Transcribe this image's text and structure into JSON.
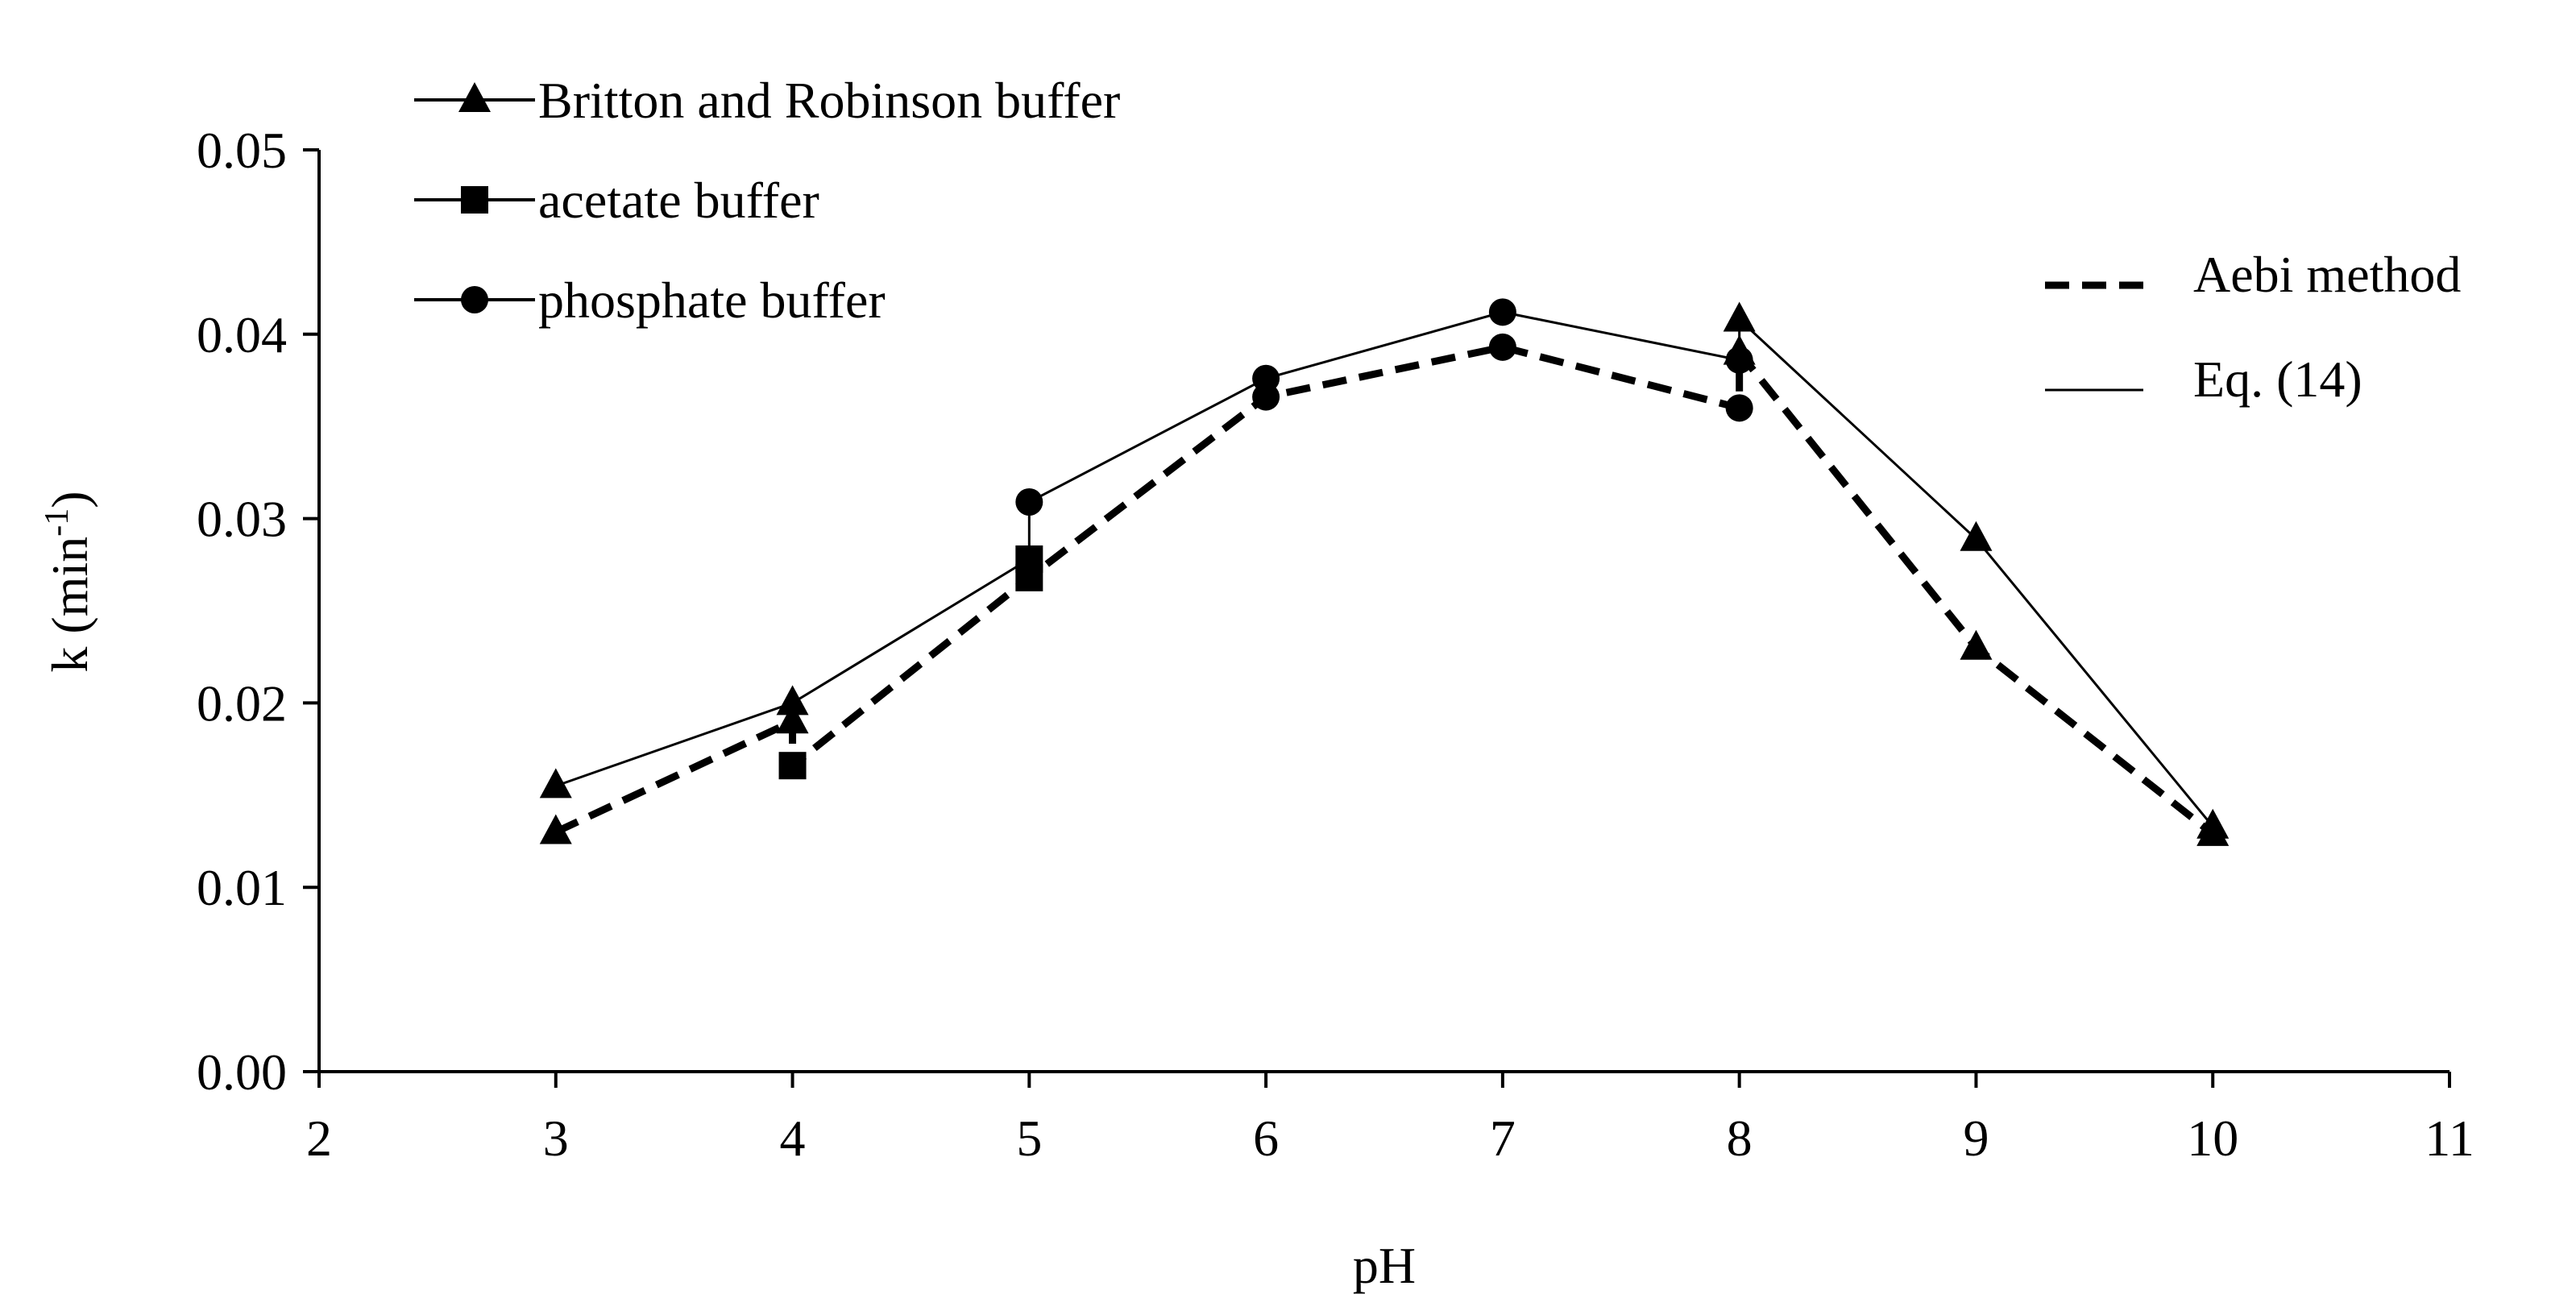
{
  "chart_data": {
    "type": "line",
    "xlabel": "pH",
    "ylabel": "k (min",
    "ylabel_sup": "-1",
    "ylabel_close": ")",
    "xlim": [
      2,
      11
    ],
    "ylim": [
      0.0,
      0.05
    ],
    "xticks": [
      "2",
      "3",
      "4",
      "5",
      "6",
      "7",
      "8",
      "9",
      "10",
      "11"
    ],
    "yticks": [
      "0.00",
      "0.01",
      "0.02",
      "0.03",
      "0.04",
      "0.05"
    ],
    "grid": false,
    "marker_legend": {
      "placement": "top-left",
      "entries": [
        {
          "label": "Britton and Robinson buffer",
          "marker": "triangle"
        },
        {
          "label": "acetate buffer",
          "marker": "square"
        },
        {
          "label": "phosphate buffer",
          "marker": "circle"
        }
      ]
    },
    "line_legend": {
      "placement": "top-right",
      "entries": [
        {
          "label": "Aebi method",
          "style": "dashed"
        },
        {
          "label": "Eq. (14)",
          "style": "solid"
        }
      ]
    },
    "series": [
      {
        "name": "Aebi method",
        "style": "dashed",
        "points": [
          {
            "x": 3,
            "y": 0.013,
            "marker": "triangle"
          },
          {
            "x": 4,
            "y": 0.019,
            "marker": "triangle"
          },
          {
            "x": 4,
            "y": 0.0166,
            "marker": "square"
          },
          {
            "x": 5,
            "y": 0.0268,
            "marker": "square"
          },
          {
            "x": 6,
            "y": 0.0366,
            "marker": "circle"
          },
          {
            "x": 7,
            "y": 0.0393,
            "marker": "circle"
          },
          {
            "x": 8,
            "y": 0.036,
            "marker": "circle"
          },
          {
            "x": 8,
            "y": 0.039,
            "marker": "triangle"
          },
          {
            "x": 9,
            "y": 0.023,
            "marker": "triangle"
          },
          {
            "x": 10,
            "y": 0.0129,
            "marker": "triangle"
          }
        ]
      },
      {
        "name": "Eq. (14)",
        "style": "solid",
        "points": [
          {
            "x": 3,
            "y": 0.0155,
            "marker": "triangle"
          },
          {
            "x": 4,
            "y": 0.02,
            "marker": "triangle"
          },
          {
            "x": 5,
            "y": 0.0278,
            "marker": "square"
          },
          {
            "x": 5,
            "y": 0.0309,
            "marker": "circle"
          },
          {
            "x": 6,
            "y": 0.0376,
            "marker": "circle"
          },
          {
            "x": 7,
            "y": 0.0412,
            "marker": "circle"
          },
          {
            "x": 8,
            "y": 0.0386,
            "marker": "circle"
          },
          {
            "x": 8,
            "y": 0.0408,
            "marker": "triangle"
          },
          {
            "x": 9,
            "y": 0.0289,
            "marker": "triangle"
          },
          {
            "x": 10,
            "y": 0.0133,
            "marker": "triangle"
          }
        ]
      }
    ]
  }
}
